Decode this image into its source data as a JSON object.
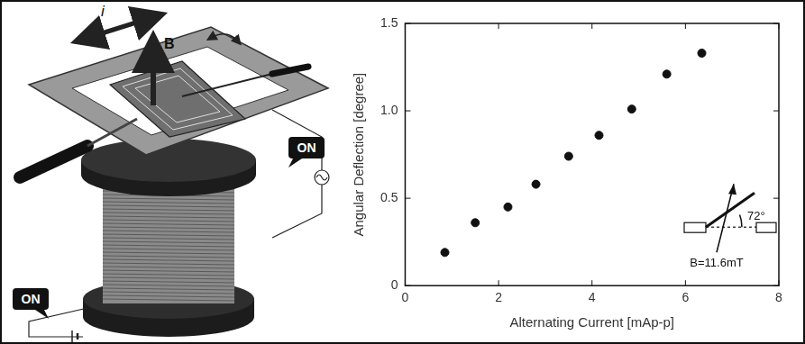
{
  "diagram": {
    "current_label": "i",
    "field_label": "B",
    "switch_labels": [
      "ON",
      "ON"
    ]
  },
  "chart_data": {
    "type": "scatter",
    "x_label": "Alternating Current [mAp-p]",
    "y_label": "Angular Deflection [degree]",
    "x": [
      0.85,
      1.5,
      2.2,
      2.8,
      3.5,
      4.15,
      4.85,
      5.6,
      6.35
    ],
    "values": [
      0.19,
      0.36,
      0.45,
      0.58,
      0.74,
      0.86,
      1.01,
      1.21,
      1.33
    ],
    "color": "#111111",
    "marker": "circle",
    "xlim": [
      0,
      8
    ],
    "xticks": [
      0,
      2,
      4,
      6,
      8
    ],
    "ylim": [
      0,
      1.5
    ],
    "yticks": [
      0,
      0.5,
      {
        "value": 1,
        "label": "1.0"
      },
      1.5
    ],
    "grid": false,
    "annotations": [
      "72°",
      "B=11.6mT"
    ]
  }
}
